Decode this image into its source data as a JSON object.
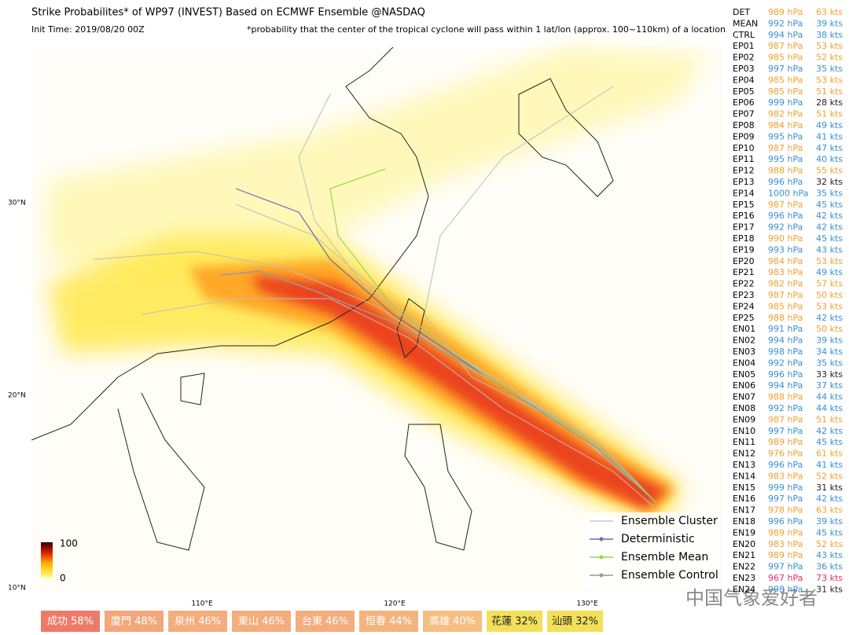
{
  "header": {
    "title": "Strike Probabilites* of WP97 (INVEST) Based on ECMWF Ensemble  @NASDAQ",
    "init_time": "Init Time: 2019/08/20 00Z",
    "note": "*probability that the center of the tropical cyclone will pass within 1 lat/lon (approx. 100~110km) of a location"
  },
  "map": {
    "lat_ticks": [
      {
        "value": 30,
        "label": "30°N"
      },
      {
        "value": 20,
        "label": "20°N"
      },
      {
        "value": 10,
        "label": "10°N"
      }
    ],
    "lon_ticks": [
      {
        "value": 110,
        "label": "110°E"
      },
      {
        "value": 120,
        "label": "120°E"
      },
      {
        "value": 130,
        "label": "130°E"
      }
    ],
    "colorbar": {
      "max": "100",
      "min": "0"
    },
    "legend": [
      {
        "label": "Ensemble Cluster",
        "color": "#c8c8c8"
      },
      {
        "label": "Deterministic",
        "color": "#6a6ab8"
      },
      {
        "label": "Ensemble Mean",
        "color": "#9ad84a"
      },
      {
        "label": "Ensemble Control",
        "color": "#999999"
      }
    ]
  },
  "palette": {
    "o": "#f0a030",
    "b": "#3a8fd0",
    "k": "#222222",
    "p": "#e0306a"
  },
  "members": [
    [
      "DET",
      "989 hPa",
      "63 kts",
      "o",
      "o"
    ],
    [
      "MEAN",
      "992 hPa",
      "39 kts",
      "b",
      "b"
    ],
    [
      "CTRL",
      "994 hPa",
      "38 kts",
      "b",
      "b"
    ],
    [
      "EP01",
      "987 hPa",
      "53 kts",
      "o",
      "o"
    ],
    [
      "EP02",
      "985 hPa",
      "52 kts",
      "o",
      "o"
    ],
    [
      "EP03",
      "997 hPa",
      "35 kts",
      "b",
      "b"
    ],
    [
      "EP04",
      "985 hPa",
      "53 kts",
      "o",
      "o"
    ],
    [
      "EP05",
      "985 hPa",
      "51 kts",
      "o",
      "o"
    ],
    [
      "EP06",
      "999 hPa",
      "28 kts",
      "b",
      "k"
    ],
    [
      "EP07",
      "982 hPa",
      "51 kts",
      "o",
      "o"
    ],
    [
      "EP08",
      "984 hPa",
      "49 kts",
      "o",
      "b"
    ],
    [
      "EP09",
      "995 hPa",
      "41 kts",
      "b",
      "b"
    ],
    [
      "EP10",
      "987 hPa",
      "47 kts",
      "o",
      "b"
    ],
    [
      "EP11",
      "995 hPa",
      "40 kts",
      "b",
      "b"
    ],
    [
      "EP12",
      "988 hPa",
      "55 kts",
      "o",
      "o"
    ],
    [
      "EP13",
      "996 hPa",
      "32 kts",
      "b",
      "k"
    ],
    [
      "EP14",
      "1000 hPa",
      "35 kts",
      "b",
      "b"
    ],
    [
      "EP15",
      "987 hPa",
      "45 kts",
      "o",
      "b"
    ],
    [
      "EP16",
      "996 hPa",
      "42 kts",
      "b",
      "b"
    ],
    [
      "EP17",
      "992 hPa",
      "42 kts",
      "b",
      "b"
    ],
    [
      "EP18",
      "990 hPa",
      "45 kts",
      "o",
      "b"
    ],
    [
      "EP19",
      "993 hPa",
      "43 kts",
      "b",
      "b"
    ],
    [
      "EP20",
      "984 hPa",
      "53 kts",
      "o",
      "o"
    ],
    [
      "EP21",
      "983 hPa",
      "49 kts",
      "o",
      "b"
    ],
    [
      "EP22",
      "982 hPa",
      "57 kts",
      "o",
      "o"
    ],
    [
      "EP23",
      "987 hPa",
      "50 kts",
      "o",
      "o"
    ],
    [
      "EP24",
      "985 hPa",
      "53 kts",
      "o",
      "o"
    ],
    [
      "EP25",
      "988 hPa",
      "42 kts",
      "o",
      "b"
    ],
    [
      "EN01",
      "991 hPa",
      "50 kts",
      "b",
      "o"
    ],
    [
      "EN02",
      "994 hPa",
      "39 kts",
      "b",
      "b"
    ],
    [
      "EN03",
      "998 hPa",
      "34 kts",
      "b",
      "b"
    ],
    [
      "EN04",
      "992 hPa",
      "35 kts",
      "b",
      "b"
    ],
    [
      "EN05",
      "996 hPa",
      "33 kts",
      "b",
      "k"
    ],
    [
      "EN06",
      "994 hPa",
      "37 kts",
      "b",
      "b"
    ],
    [
      "EN07",
      "988 hPa",
      "44 kts",
      "o",
      "b"
    ],
    [
      "EN08",
      "992 hPa",
      "44 kts",
      "b",
      "b"
    ],
    [
      "EN09",
      "987 hPa",
      "51 kts",
      "o",
      "o"
    ],
    [
      "EN10",
      "997 hPa",
      "42 kts",
      "b",
      "b"
    ],
    [
      "EN11",
      "989 hPa",
      "45 kts",
      "o",
      "b"
    ],
    [
      "EN12",
      "976 hPa",
      "61 kts",
      "o",
      "o"
    ],
    [
      "EN13",
      "996 hPa",
      "41 kts",
      "b",
      "b"
    ],
    [
      "EN14",
      "983 hPa",
      "52 kts",
      "o",
      "o"
    ],
    [
      "EN15",
      "999 hPa",
      "31 kts",
      "b",
      "k"
    ],
    [
      "EN16",
      "997 hPa",
      "42 kts",
      "b",
      "b"
    ],
    [
      "EN17",
      "978 hPa",
      "63 kts",
      "o",
      "o"
    ],
    [
      "EN18",
      "996 hPa",
      "39 kts",
      "b",
      "b"
    ],
    [
      "EN19",
      "989 hPa",
      "45 kts",
      "o",
      "b"
    ],
    [
      "EN20",
      "983 hPa",
      "52 kts",
      "o",
      "o"
    ],
    [
      "EN21",
      "989 hPa",
      "43 kts",
      "o",
      "b"
    ],
    [
      "EN22",
      "997 hPa",
      "36 kts",
      "b",
      "b"
    ],
    [
      "EN23",
      "967 hPa",
      "73 kts",
      "p",
      "p"
    ],
    [
      "EN24",
      "998 hPa",
      "31 kts",
      "b",
      "k"
    ]
  ],
  "cities": [
    {
      "label": "成功 58%",
      "color": "#ee7a6a"
    },
    {
      "label": "廈門 48%",
      "color": "#f4a77a"
    },
    {
      "label": "泉州 46%",
      "color": "#f4ad7c"
    },
    {
      "label": "東山 46%",
      "color": "#f4ad7c"
    },
    {
      "label": "台東 46%",
      "color": "#f4ad7c"
    },
    {
      "label": "恒春 44%",
      "color": "#f5b47e"
    },
    {
      "label": "高雄 40%",
      "color": "#f6be82"
    },
    {
      "label": "花蓮 32%",
      "color": "#f3e05a"
    },
    {
      "label": "汕頭 32%",
      "color": "#f3e05a"
    }
  ],
  "watermark": "中国气象爱好者"
}
